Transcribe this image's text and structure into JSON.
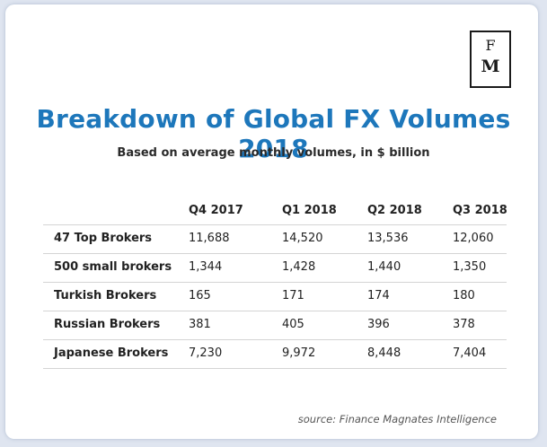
{
  "logo": {
    "line1": "F",
    "line2": "M"
  },
  "title": "Breakdown of Global FX Volumes 2018",
  "subtitle": "Based on average monthly volumes, in $ billion",
  "source": "source: Finance Magnates Intelligence",
  "chart_data": {
    "type": "table",
    "title": "Breakdown of Global FX Volumes 2018",
    "subtitle": "Based on average monthly volumes, in $ billion",
    "columns": [
      "Q4 2017",
      "Q1 2018",
      "Q2 2018",
      "Q3 2018"
    ],
    "rows": [
      {
        "label": "47 Top Brokers",
        "values": [
          "11,688",
          "14,520",
          "13,536",
          "12,060"
        ]
      },
      {
        "label": "500 small brokers",
        "values": [
          "1,344",
          "1,428",
          "1,440",
          "1,350"
        ]
      },
      {
        "label": "Turkish Brokers",
        "values": [
          "165",
          "171",
          "174",
          "180"
        ]
      },
      {
        "label": "Russian Brokers",
        "values": [
          "381",
          "405",
          "396",
          "378"
        ]
      },
      {
        "label": "Japanese Brokers",
        "values": [
          "7,230",
          "9,972",
          "8,448",
          "7,404"
        ]
      }
    ]
  }
}
